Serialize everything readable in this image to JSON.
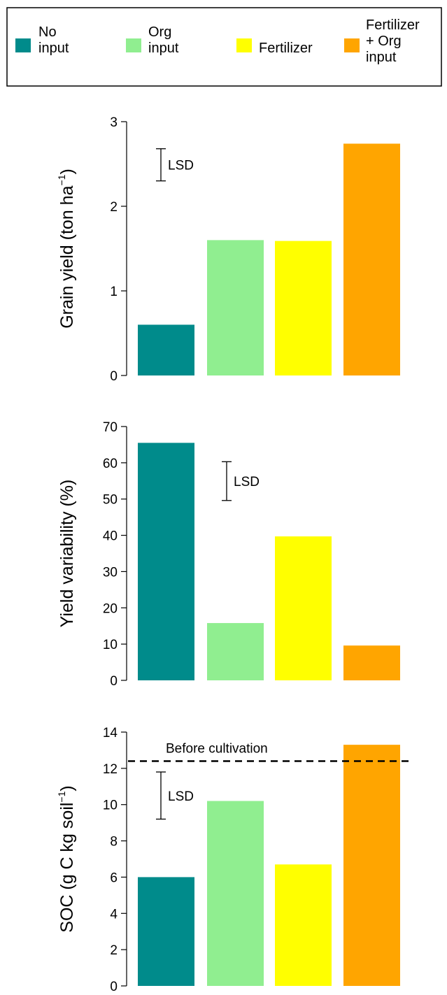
{
  "legend": {
    "items": [
      {
        "label_lines": [
          "No",
          "input"
        ],
        "color": "#008B8B"
      },
      {
        "label_lines": [
          "Org",
          "input"
        ],
        "color": "#90EE90"
      },
      {
        "label_lines": [
          "Fertilizer"
        ],
        "color": "#FFFF00"
      },
      {
        "label_lines": [
          "Fertilizer",
          "+ Org",
          "input"
        ],
        "color": "#FFA500"
      }
    ]
  },
  "chart_data": [
    {
      "type": "bar",
      "categories": [
        "No input",
        "Org input",
        "Fertilizer",
        "Fertilizer + Org input"
      ],
      "values": [
        0.6,
        1.6,
        1.59,
        2.74
      ],
      "colors": [
        "#008B8B",
        "#90EE90",
        "#FFFF00",
        "#FFA500"
      ],
      "ylabel": "Grain yield (ton ha",
      "ylabel_sup": "−1",
      "ylabel_close": ")",
      "ylim": [
        0,
        3
      ],
      "yticks": [
        0,
        1,
        2,
        3
      ],
      "grid": false,
      "lsd": {
        "label": "LSD",
        "low": 2.3,
        "high": 2.68
      }
    },
    {
      "type": "bar",
      "categories": [
        "No input",
        "Org input",
        "Fertilizer",
        "Fertilizer + Org input"
      ],
      "values": [
        65.5,
        15.8,
        39.7,
        9.6
      ],
      "colors": [
        "#008B8B",
        "#90EE90",
        "#FFFF00",
        "#FFA500"
      ],
      "ylabel": "Yield variability  (%)",
      "ylim": [
        0,
        70
      ],
      "yticks": [
        0,
        10,
        20,
        30,
        40,
        50,
        60,
        70
      ],
      "grid": false,
      "lsd": {
        "label": "LSD",
        "low": 49.6,
        "high": 60.3
      }
    },
    {
      "type": "bar",
      "categories": [
        "No input",
        "Org input",
        "Fertilizer",
        "Fertilizer + Org input"
      ],
      "values": [
        6.0,
        10.2,
        6.7,
        13.3
      ],
      "colors": [
        "#008B8B",
        "#90EE90",
        "#FFFF00",
        "#FFA500"
      ],
      "ylabel": "SOC  (g C kg soil",
      "ylabel_sup": "−1",
      "ylabel_close": ")",
      "ylim": [
        0,
        14
      ],
      "yticks": [
        0,
        2,
        4,
        6,
        8,
        10,
        12,
        14
      ],
      "grid": false,
      "lsd": {
        "label": "LSD",
        "low": 9.2,
        "high": 11.8
      },
      "reference_line": {
        "label": "Before cultivation",
        "value": 12.4
      }
    }
  ]
}
